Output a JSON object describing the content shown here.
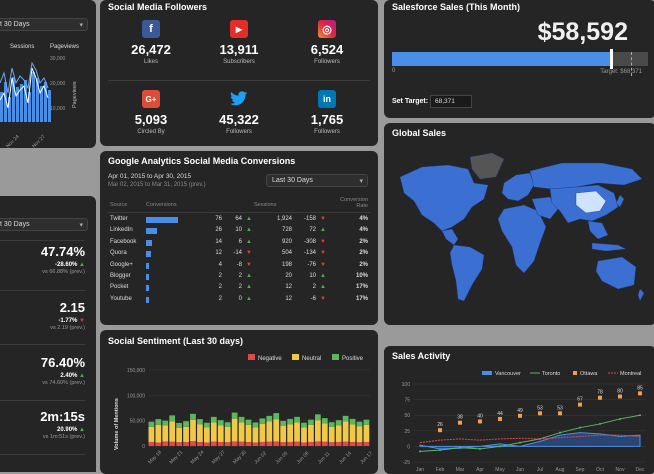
{
  "left_top": {
    "dropdown": "t 30 Days",
    "legend_sessions": "Sessions",
    "legend_pageviews": "Pageviews",
    "y_right_title": "Pageviews",
    "y_ticks": [
      "30,000",
      "20,000",
      "10,000"
    ],
    "x_ticks": [
      "Nov 24",
      "Nov 27"
    ]
  },
  "left_kpis": {
    "dropdown": "t 30 Days",
    "items": [
      {
        "value": "47.74%",
        "change": "-28.60%",
        "trend": "up",
        "vs": "vs 66.88% (prev.)"
      },
      {
        "value": "2.15",
        "change": "-1.77%",
        "trend": "down",
        "vs": "vs 2.19 (prev.)"
      },
      {
        "value": "76.40%",
        "change": "2.40%",
        "trend": "up",
        "vs": "vs 74.60% (prev.)"
      },
      {
        "value": "2m:15s",
        "change": "20.90%",
        "trend": "up",
        "vs": "vs 1m:51s (prev.)"
      }
    ]
  },
  "social_followers": {
    "title": "Social Media Followers",
    "items": [
      {
        "icon": "f",
        "value": "26,472",
        "label": "Likes",
        "color": "#3b5998"
      },
      {
        "icon": "▶",
        "value": "13,911",
        "label": "Subscribers",
        "color": "#e52d27"
      },
      {
        "icon": "◎",
        "value": "6,524",
        "label": "Followers",
        "color": "#c13584"
      },
      {
        "icon": "G+",
        "value": "5,093",
        "label": "Circled By",
        "color": "#dd4b39"
      },
      {
        "icon": "🐦",
        "value": "45,322",
        "label": "Followers",
        "color": "#1da1f2"
      },
      {
        "icon": "in",
        "value": "1,765",
        "label": "Followers",
        "color": "#0077b5"
      }
    ]
  },
  "salesforce": {
    "title": "Salesforce Sales (This Month)",
    "amount": "$58,592",
    "progress": 0.855,
    "target_fraction": 0.935,
    "axis_zero": "0",
    "target_label": "Target: $68,371",
    "set_target_label": "Set Target:",
    "set_target_value": "68,371"
  },
  "ga": {
    "title": "Google Analytics Social Media Conversions",
    "date_range": "Apr 01, 2015 to Apr 30, 2015",
    "date_prev": "Mar 02, 2015 to Mar 31, 2015 (prev.)",
    "dropdown": "Last 30 Days",
    "headers": {
      "source": "Source",
      "conversions": "Conversions",
      "sessions": "Sessions",
      "rate": "Conversion Rate"
    },
    "rows": [
      {
        "source": "Twitter",
        "conv": "76",
        "prev": "64",
        "ct": "up",
        "sess": "1,924",
        "sdelta": "-158",
        "st": "down",
        "rate": "4%",
        "bar": 76
      },
      {
        "source": "LinkedIn",
        "conv": "26",
        "prev": "10",
        "ct": "up",
        "sess": "728",
        "sdelta": "72",
        "st": "up",
        "rate": "4%",
        "bar": 26
      },
      {
        "source": "Facebook",
        "conv": "14",
        "prev": "6",
        "ct": "up",
        "sess": "920",
        "sdelta": "-308",
        "st": "down",
        "rate": "2%",
        "bar": 14
      },
      {
        "source": "Quora",
        "conv": "12",
        "prev": "-14",
        "ct": "down",
        "sess": "504",
        "sdelta": "-134",
        "st": "down",
        "rate": "2%",
        "bar": 12
      },
      {
        "source": "Google+",
        "conv": "4",
        "prev": "-8",
        "ct": "down",
        "sess": "198",
        "sdelta": "-76",
        "st": "down",
        "rate": "2%",
        "bar": 4
      },
      {
        "source": "Blogger",
        "conv": "2",
        "prev": "2",
        "ct": "up",
        "sess": "20",
        "sdelta": "10",
        "st": "up",
        "rate": "10%",
        "bar": 2
      },
      {
        "source": "Pocket",
        "conv": "2",
        "prev": "2",
        "ct": "up",
        "sess": "12",
        "sdelta": "2",
        "st": "up",
        "rate": "17%",
        "bar": 2
      },
      {
        "source": "Youtube",
        "conv": "2",
        "prev": "0",
        "ct": "up",
        "sess": "12",
        "sdelta": "-6",
        "st": "down",
        "rate": "17%",
        "bar": 2
      }
    ]
  },
  "global_sales": {
    "title": "Global Sales"
  },
  "sentiment": {
    "title": "Social Sentiment (Last 30 days)",
    "legend": [
      "Negative",
      "Neutral",
      "Positive"
    ],
    "colors": [
      "#e04a4a",
      "#f0c94a",
      "#5cb85c"
    ],
    "ylabel": "Volume of Mentions",
    "yticks": [
      "150,000",
      "100,000",
      "50,000",
      "0"
    ],
    "xticks": [
      "May 18",
      "May 21",
      "May 24",
      "May 27",
      "May 30",
      "Jun 02",
      "Jun 05",
      "Jun 08",
      "Jun 11",
      "Jun 14",
      "Jun 17"
    ]
  },
  "sales_activity": {
    "title": "Sales Activity",
    "legend": [
      "Vancouver",
      "Toronto",
      "Ottawa",
      "Montreal"
    ],
    "colors": [
      "#4a8fe7",
      "#5cb85c",
      "#f0a04a",
      "#e04a4a"
    ],
    "yticks": [
      "100",
      "75",
      "50",
      "25",
      "0",
      "-25"
    ],
    "months": [
      "Jan",
      "Feb",
      "Mar",
      "Apr",
      "May",
      "Jun",
      "Jul",
      "Aug",
      "Sep",
      "Oct",
      "Nov",
      "Dec"
    ],
    "ottawa_labels": [
      "",
      "26",
      "38",
      "40",
      "44",
      "49",
      "53",
      "53",
      "67",
      "78",
      "80",
      "85"
    ]
  },
  "chart_data": [
    {
      "type": "bar",
      "title": "",
      "categories": [
        "Nov 24",
        "Nov 27"
      ],
      "series": [
        {
          "name": "Sessions"
        },
        {
          "name": "Pageviews"
        }
      ]
    },
    {
      "type": "bar",
      "title": "Social Sentiment (Last 30 days)",
      "ylabel": "Volume of Mentions",
      "ylim": [
        0,
        150000
      ],
      "series": [
        {
          "name": "Negative",
          "values": [
            8000,
            7000,
            9000,
            8500,
            7500,
            8000,
            9500,
            8000,
            7000,
            8500,
            8000,
            7500,
            9000,
            8500,
            8000,
            7000,
            8000,
            8500,
            9000,
            7500,
            8000,
            8500,
            7000,
            8000,
            9000,
            8500,
            7500,
            8000,
            8500,
            8000,
            7500,
            8000
          ]
        },
        {
          "name": "Neutral",
          "values": [
            30000,
            35000,
            32000,
            40000,
            28000,
            30000,
            42000,
            35000,
            30000,
            38000,
            33000,
            30000,
            45000,
            38000,
            34000,
            30000,
            36000,
            40000,
            44000,
            32000,
            35000,
            38000,
            30000,
            34000,
            42000,
            36000,
            30000,
            33000,
            40000,
            35000,
            31000,
            34000
          ]
        },
        {
          "name": "Positive",
          "values": [
            10000,
            11000,
            9000,
            12000,
            10000,
            11000,
            12000,
            10000,
            9000,
            11000,
            10000,
            9500,
            12000,
            11000,
            10000,
            9500,
            10500,
            11000,
            12000,
            10000,
            10500,
            11000,
            9000,
            10000,
            11500,
            10500,
            9500,
            10000,
            11000,
            10500,
            9500,
            10000
          ]
        }
      ]
    },
    {
      "type": "line",
      "title": "Sales Activity",
      "categories": [
        "Jan",
        "Feb",
        "Mar",
        "Apr",
        "May",
        "Jun",
        "Jul",
        "Aug",
        "Sep",
        "Oct",
        "Nov",
        "Dec"
      ],
      "ylim": [
        -25,
        100
      ],
      "series": [
        {
          "name": "Vancouver",
          "values": [
            2,
            -4,
            -3,
            0,
            4,
            0,
            8,
            18,
            22,
            20,
            16,
            18
          ]
        },
        {
          "name": "Toronto",
          "values": [
            -8,
            -6,
            -2,
            -4,
            0,
            6,
            12,
            22,
            30,
            36,
            44,
            50
          ]
        },
        {
          "name": "Ottawa",
          "values": [
            null,
            26,
            38,
            40,
            44,
            49,
            53,
            53,
            67,
            78,
            80,
            85
          ]
        },
        {
          "name": "Montreal",
          "values": [
            6,
            10,
            12,
            10,
            12,
            13,
            12,
            14,
            16,
            18,
            18,
            16
          ]
        }
      ]
    }
  ]
}
